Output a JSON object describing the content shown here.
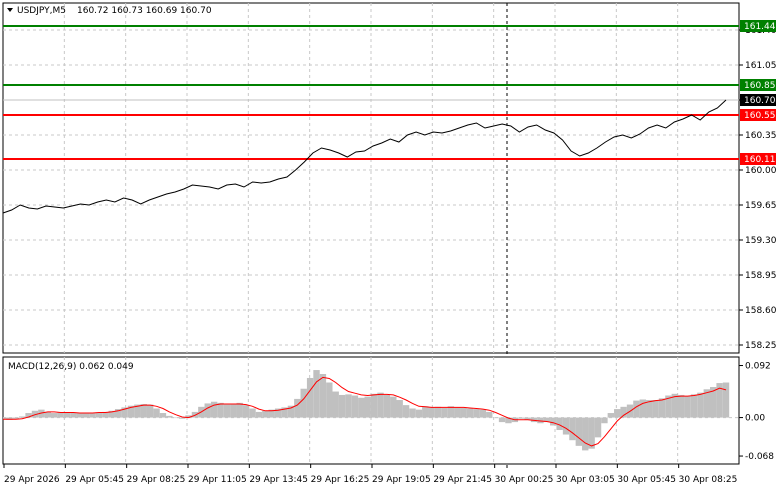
{
  "header": {
    "symbol": "USDJPY,M5",
    "ohlc": "160.72 160.73 160.69 160.70"
  },
  "colors": {
    "background": "#ffffff",
    "price_line": "#000000",
    "grid": "#c8c8c8",
    "support_resistance_green": "#008000",
    "support_resistance_red": "#ff0000",
    "current_price_tag": "#000000",
    "macd_histogram": "#c0c0c0",
    "macd_signal": "#ff0000"
  },
  "chart_data": {
    "type": "line",
    "title": "USDJPY,M5",
    "price_axis": {
      "ylim": [
        158.2,
        161.5
      ],
      "ticks": [
        161.4,
        161.05,
        160.7,
        160.35,
        160.0,
        159.65,
        159.3,
        158.95,
        158.6,
        158.25
      ],
      "tick_labels": [
        "161.40",
        "161.05",
        "160.70",
        "160.35",
        "160.00",
        "159.65",
        "159.30",
        "158.95",
        "158.60",
        "158.25"
      ]
    },
    "x_axis": {
      "tick_labels": [
        "29 Apr 2026",
        "29 Apr 05:45",
        "29 Apr 08:25",
        "29 Apr 11:05",
        "29 Apr 13:45",
        "29 Apr 16:25",
        "29 Apr 19:05",
        "29 Apr 21:45",
        "30 Apr 00:25",
        "30 Apr 03:05",
        "30 Apr 05:45",
        "30 Apr 08:25"
      ]
    },
    "levels": [
      {
        "price": 161.44,
        "label": "161.44",
        "color": "#008000"
      },
      {
        "price": 160.85,
        "label": "160.85",
        "color": "#008000"
      },
      {
        "price": 160.55,
        "label": "160.55",
        "color": "#ff0000"
      },
      {
        "price": 160.11,
        "label": "160.11",
        "color": "#ff0000"
      }
    ],
    "current_price": {
      "price": 160.7,
      "label": "160.70"
    },
    "series": [
      {
        "values": [
          159.57,
          159.6,
          159.65,
          159.62,
          159.61,
          159.64,
          159.63,
          159.62,
          159.64,
          159.66,
          159.65,
          159.68,
          159.7,
          159.68,
          159.72,
          159.7,
          159.66,
          159.7,
          159.73,
          159.76,
          159.78,
          159.81,
          159.85,
          159.84,
          159.83,
          159.81,
          159.85,
          159.86,
          159.83,
          159.88,
          159.87,
          159.88,
          159.91,
          159.93,
          160.0,
          160.08,
          160.17,
          160.22,
          160.2,
          160.17,
          160.13,
          160.18,
          160.19,
          160.24,
          160.27,
          160.31,
          160.28,
          160.35,
          160.38,
          160.35,
          160.38,
          160.37,
          160.39,
          160.42,
          160.45,
          160.47,
          160.42,
          160.44,
          160.46,
          160.44,
          160.38,
          160.43,
          160.45,
          160.4,
          160.37,
          160.3,
          160.19,
          160.14,
          160.17,
          160.22,
          160.28,
          160.33,
          160.35,
          160.32,
          160.36,
          160.42,
          160.45,
          160.42,
          160.48,
          160.51,
          160.55,
          160.5,
          160.58,
          160.62,
          160.7
        ]
      }
    ],
    "macd": {
      "label": "MACD(12,26,9) 0.062 0.049",
      "ylim": [
        -0.075,
        0.1
      ],
      "ticks": [
        0.092,
        0.0,
        -0.068
      ],
      "tick_labels": [
        "0.092",
        "0.00",
        "-0.068"
      ],
      "histogram": [
        -0.003,
        -0.004,
        -0.002,
        0.002,
        0.008,
        0.012,
        0.014,
        0.01,
        0.008,
        0.009,
        0.009,
        0.009,
        0.008,
        0.008,
        0.008,
        0.009,
        0.01,
        0.012,
        0.015,
        0.018,
        0.021,
        0.023,
        0.024,
        0.023,
        0.016,
        0.008,
        0.003,
        0.0,
        -0.002,
        0.004,
        0.01,
        0.019,
        0.025,
        0.028,
        0.026,
        0.023,
        0.024,
        0.026,
        0.022,
        0.016,
        0.01,
        0.012,
        0.014,
        0.016,
        0.018,
        0.021,
        0.033,
        0.051,
        0.07,
        0.084,
        0.077,
        0.062,
        0.046,
        0.04,
        0.041,
        0.039,
        0.035,
        0.037,
        0.042,
        0.044,
        0.04,
        0.037,
        0.031,
        0.022,
        0.016,
        0.014,
        0.02,
        0.018,
        0.019,
        0.017,
        0.02,
        0.018,
        0.017,
        0.016,
        0.015,
        0.014,
        0.01,
        0.0,
        -0.008,
        -0.01,
        -0.008,
        -0.002,
        -0.004,
        -0.008,
        -0.01,
        -0.008,
        -0.014,
        -0.022,
        -0.03,
        -0.04,
        -0.05,
        -0.058,
        -0.055,
        -0.035,
        -0.01,
        0.008,
        0.015,
        0.019,
        0.023,
        0.03,
        0.032,
        0.031,
        0.031,
        0.034,
        0.039,
        0.042,
        0.04,
        0.038,
        0.041,
        0.044,
        0.05,
        0.054,
        0.061,
        0.062
      ],
      "signal": [
        -0.003,
        -0.003,
        -0.003,
        -0.002,
        0.001,
        0.005,
        0.008,
        0.01,
        0.01,
        0.009,
        0.009,
        0.009,
        0.008,
        0.008,
        0.008,
        0.009,
        0.009,
        0.01,
        0.012,
        0.015,
        0.018,
        0.02,
        0.022,
        0.022,
        0.02,
        0.016,
        0.01,
        0.005,
        0.001,
        0.0,
        0.004,
        0.01,
        0.017,
        0.022,
        0.024,
        0.024,
        0.024,
        0.024,
        0.023,
        0.02,
        0.015,
        0.012,
        0.012,
        0.013,
        0.015,
        0.017,
        0.022,
        0.033,
        0.048,
        0.063,
        0.071,
        0.069,
        0.062,
        0.053,
        0.046,
        0.043,
        0.04,
        0.039,
        0.04,
        0.041,
        0.041,
        0.04,
        0.036,
        0.031,
        0.025,
        0.02,
        0.019,
        0.018,
        0.018,
        0.018,
        0.018,
        0.018,
        0.018,
        0.017,
        0.016,
        0.015,
        0.013,
        0.009,
        0.004,
        -0.001,
        -0.004,
        -0.004,
        -0.004,
        -0.005,
        -0.006,
        -0.007,
        -0.009,
        -0.013,
        -0.019,
        -0.027,
        -0.036,
        -0.045,
        -0.05,
        -0.046,
        -0.034,
        -0.02,
        -0.006,
        0.004,
        0.011,
        0.019,
        0.025,
        0.028,
        0.03,
        0.031,
        0.034,
        0.037,
        0.038,
        0.038,
        0.039,
        0.041,
        0.044,
        0.047,
        0.052,
        0.049
      ]
    }
  }
}
